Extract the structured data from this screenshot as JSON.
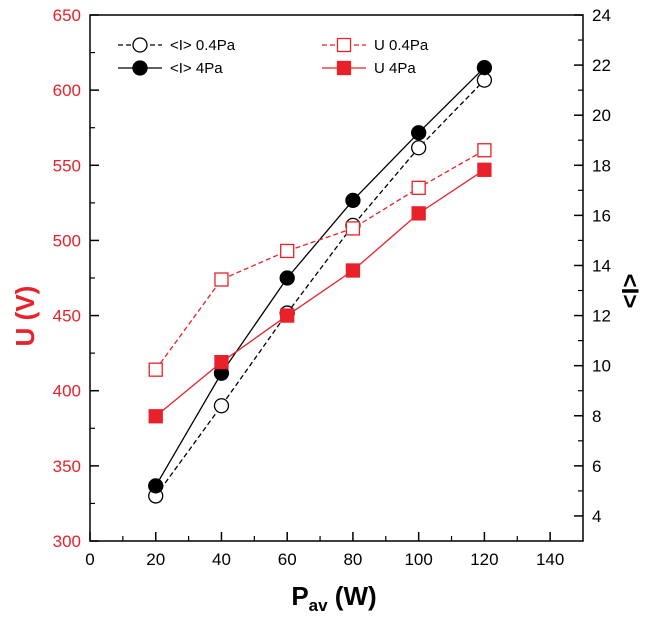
{
  "chart_data": {
    "type": "line",
    "x_axis": {
      "label_main": "P",
      "label_sub": "av",
      "label_unit": " (W)",
      "range": [
        0,
        150
      ],
      "ticks": [
        0,
        20,
        40,
        60,
        80,
        100,
        120,
        140
      ]
    },
    "y_left": {
      "label": "U (V)",
      "range": [
        300,
        650
      ],
      "ticks": [
        300,
        350,
        400,
        450,
        500,
        550,
        600,
        650
      ],
      "color": "#e8212a"
    },
    "y_right": {
      "label": "<I>",
      "range": [
        3,
        24
      ],
      "ticks": [
        4,
        6,
        8,
        10,
        12,
        14,
        16,
        18,
        20,
        22,
        24
      ],
      "color": "#000000"
    },
    "x": [
      20,
      40,
      60,
      80,
      100,
      120
    ],
    "series": [
      {
        "name": "<I> 0.4Pa",
        "axis": "right",
        "marker": "circle-open",
        "dash": true,
        "color": "#000000",
        "values": [
          4.8,
          8.4,
          12.1,
          15.6,
          18.7,
          21.4
        ]
      },
      {
        "name": "<I> 4Pa",
        "axis": "right",
        "marker": "circle-filled",
        "dash": false,
        "color": "#000000",
        "values": [
          5.2,
          9.7,
          13.5,
          16.6,
          19.3,
          21.9
        ]
      },
      {
        "name": "U 0.4Pa",
        "axis": "left",
        "marker": "square-open",
        "dash": true,
        "color": "#e8212a",
        "values": [
          414,
          474,
          493,
          508,
          535,
          560
        ]
      },
      {
        "name": "U 4Pa",
        "axis": "left",
        "marker": "square-filled",
        "dash": false,
        "color": "#e8212a",
        "values": [
          383,
          419,
          450,
          480,
          518,
          547
        ]
      }
    ],
    "legend_placement": "top",
    "grid": false
  }
}
